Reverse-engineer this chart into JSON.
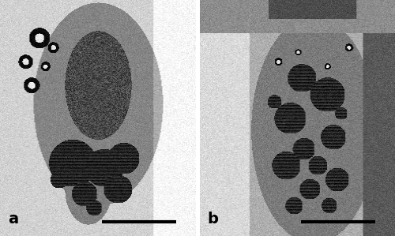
{
  "fig_width": 5.0,
  "fig_height": 2.99,
  "dpi": 100,
  "background_color": "#ffffff",
  "panel_a_label": "a",
  "panel_b_label": "b",
  "label_fontsize": 14,
  "label_color": "#000000",
  "label_fontweight": "bold",
  "scalebar_color": "#000000",
  "scalebar_linewidth": 3,
  "border_color": "#000000",
  "border_linewidth": 1
}
